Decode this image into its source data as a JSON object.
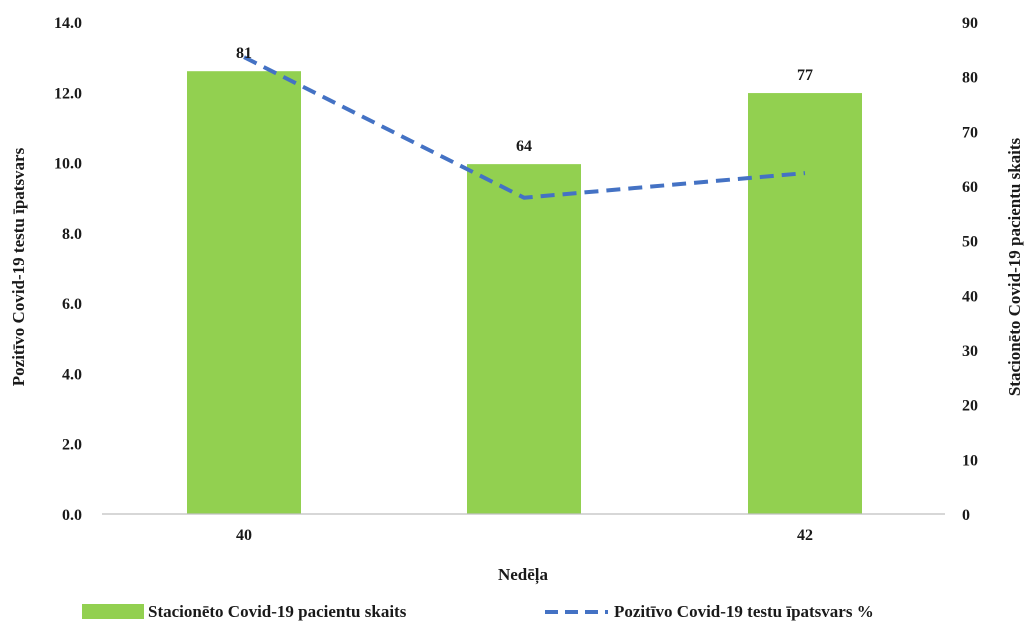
{
  "chart_data": {
    "type": "bar",
    "categories": [
      "40",
      "",
      "42"
    ],
    "xlabel": "Nedēļa",
    "ylabel_left": "Pozitīvo Covid-19 testu īpatsvars",
    "ylabel_right": "Stacionēto Covid-19 pacientu skaits",
    "ylim_left": [
      0,
      14
    ],
    "ylim_right": [
      0,
      90
    ],
    "left_ticks": [
      "0.0",
      "2.0",
      "4.0",
      "6.0",
      "8.0",
      "10.0",
      "12.0",
      "14.0"
    ],
    "right_ticks": [
      "0",
      "10",
      "20",
      "30",
      "40",
      "50",
      "60",
      "70",
      "80",
      "90"
    ],
    "grid": false,
    "legend_position": "bottom",
    "series": [
      {
        "name": "Stacionēto Covid-19 pacientu skaits",
        "type": "bar",
        "axis": "right",
        "values": [
          81,
          64,
          77
        ],
        "data_labels": [
          "81",
          "64",
          "77"
        ],
        "color": "#92d050"
      },
      {
        "name": "Pozitīvo Covid-19 testu īpatsvars %",
        "type": "line",
        "style": "dashed",
        "axis": "left",
        "values": [
          13.0,
          9.0,
          9.7
        ],
        "color": "#4472c4"
      }
    ]
  }
}
